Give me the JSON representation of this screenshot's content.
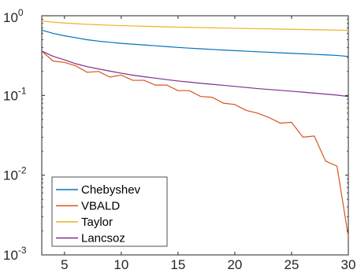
{
  "chart_data": {
    "type": "line",
    "yscale": "log",
    "xlim": [
      3,
      30
    ],
    "ylim": [
      0.001,
      1
    ],
    "grid": false,
    "legend_location": "bottom-left",
    "x_ticks": [
      5,
      10,
      15,
      20,
      25,
      30
    ],
    "x_tick_labels": [
      "5",
      "10",
      "15",
      "20",
      "25",
      "30"
    ],
    "y_ticks": [
      0.001,
      0.01,
      0.1,
      1
    ],
    "y_tick_labels": [
      {
        "base": "10",
        "exp": "-3"
      },
      {
        "base": "10",
        "exp": "-2"
      },
      {
        "base": "10",
        "exp": "-1"
      },
      {
        "base": "10",
        "exp": "0"
      }
    ],
    "x": [
      3,
      4,
      5,
      6,
      7,
      8,
      9,
      10,
      11,
      12,
      13,
      14,
      15,
      16,
      17,
      18,
      19,
      20,
      21,
      22,
      23,
      24,
      25,
      26,
      27,
      28,
      29,
      30
    ],
    "series": [
      {
        "name": "Chebyshev",
        "color": "#0072BD",
        "values": [
          0.66,
          0.6,
          0.56,
          0.53,
          0.5,
          0.48,
          0.465,
          0.45,
          0.44,
          0.43,
          0.42,
          0.41,
          0.4,
          0.392,
          0.385,
          0.378,
          0.371,
          0.365,
          0.359,
          0.353,
          0.348,
          0.343,
          0.338,
          0.333,
          0.328,
          0.323,
          0.318,
          0.308
        ]
      },
      {
        "name": "VBALD",
        "color": "#D95319",
        "values": [
          0.36,
          0.27,
          0.26,
          0.235,
          0.195,
          0.2,
          0.17,
          0.18,
          0.155,
          0.155,
          0.135,
          0.135,
          0.115,
          0.115,
          0.097,
          0.095,
          0.08,
          0.077,
          0.065,
          0.06,
          0.053,
          0.045,
          0.046,
          0.03,
          0.031,
          0.015,
          0.013,
          0.0017
        ]
      },
      {
        "name": "Taylor",
        "color": "#EDB120",
        "values": [
          0.86,
          0.83,
          0.81,
          0.795,
          0.78,
          0.77,
          0.76,
          0.752,
          0.745,
          0.738,
          0.732,
          0.726,
          0.72,
          0.715,
          0.71,
          0.705,
          0.7,
          0.696,
          0.692,
          0.688,
          0.684,
          0.68,
          0.676,
          0.672,
          0.668,
          0.664,
          0.66,
          0.655
        ]
      },
      {
        "name": "Lancsoz",
        "color": "#7E2F8E",
        "values": [
          0.36,
          0.31,
          0.28,
          0.25,
          0.23,
          0.215,
          0.202,
          0.19,
          0.18,
          0.172,
          0.165,
          0.158,
          0.152,
          0.147,
          0.142,
          0.138,
          0.134,
          0.13,
          0.126,
          0.122,
          0.119,
          0.116,
          0.113,
          0.11,
          0.107,
          0.104,
          0.101,
          0.097
        ]
      }
    ]
  }
}
